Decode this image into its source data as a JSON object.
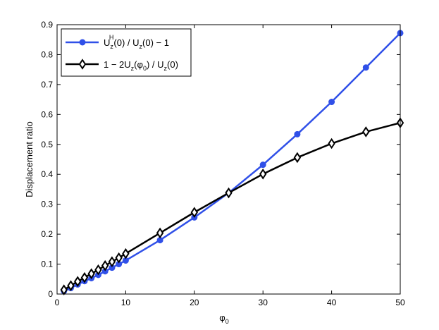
{
  "chart_data": {
    "type": "line",
    "xlabel": "φ",
    "xlabel_sub": "0",
    "ylabel": "Displacement ratio",
    "xlim": [
      0,
      50
    ],
    "ylim": [
      0,
      0.9
    ],
    "xticks": [
      "0",
      "10",
      "20",
      "30",
      "40",
      "50"
    ],
    "yticks": [
      "0",
      "0.1",
      "0.2",
      "0.3",
      "0.4",
      "0.5",
      "0.6",
      "0.7",
      "0.8",
      "0.9"
    ],
    "grid": false,
    "legend_position": "top-left",
    "series": [
      {
        "legend_parts": [
          "U",
          "z",
          "H",
          "(0) / U",
          "z",
          "(0) − 1"
        ],
        "color": "#3050e8",
        "marker": "circle",
        "points": [
          [
            1,
            0.01
          ],
          [
            2,
            0.02
          ],
          [
            3,
            0.032
          ],
          [
            4,
            0.043
          ],
          [
            5,
            0.053
          ],
          [
            6,
            0.064
          ],
          [
            7,
            0.076
          ],
          [
            8,
            0.088
          ],
          [
            9,
            0.1
          ],
          [
            10,
            0.112
          ],
          [
            15,
            0.18
          ],
          [
            20,
            0.256
          ],
          [
            25,
            0.338
          ],
          [
            30,
            0.432
          ],
          [
            35,
            0.534
          ],
          [
            40,
            0.642
          ],
          [
            45,
            0.757
          ],
          [
            50,
            0.872
          ]
        ]
      },
      {
        "legend_parts": [
          "1 − 2U",
          "z",
          "(φ",
          "0",
          ") / U",
          "z",
          "(0)"
        ],
        "color": "#000000",
        "marker": "diamond",
        "points": [
          [
            1,
            0.014
          ],
          [
            2,
            0.028
          ],
          [
            3,
            0.042
          ],
          [
            4,
            0.055
          ],
          [
            5,
            0.068
          ],
          [
            6,
            0.081
          ],
          [
            7,
            0.095
          ],
          [
            8,
            0.108
          ],
          [
            9,
            0.121
          ],
          [
            10,
            0.135
          ],
          [
            15,
            0.204
          ],
          [
            20,
            0.273
          ],
          [
            25,
            0.338
          ],
          [
            30,
            0.401
          ],
          [
            35,
            0.456
          ],
          [
            40,
            0.503
          ],
          [
            45,
            0.542
          ],
          [
            50,
            0.572
          ]
        ]
      }
    ]
  }
}
